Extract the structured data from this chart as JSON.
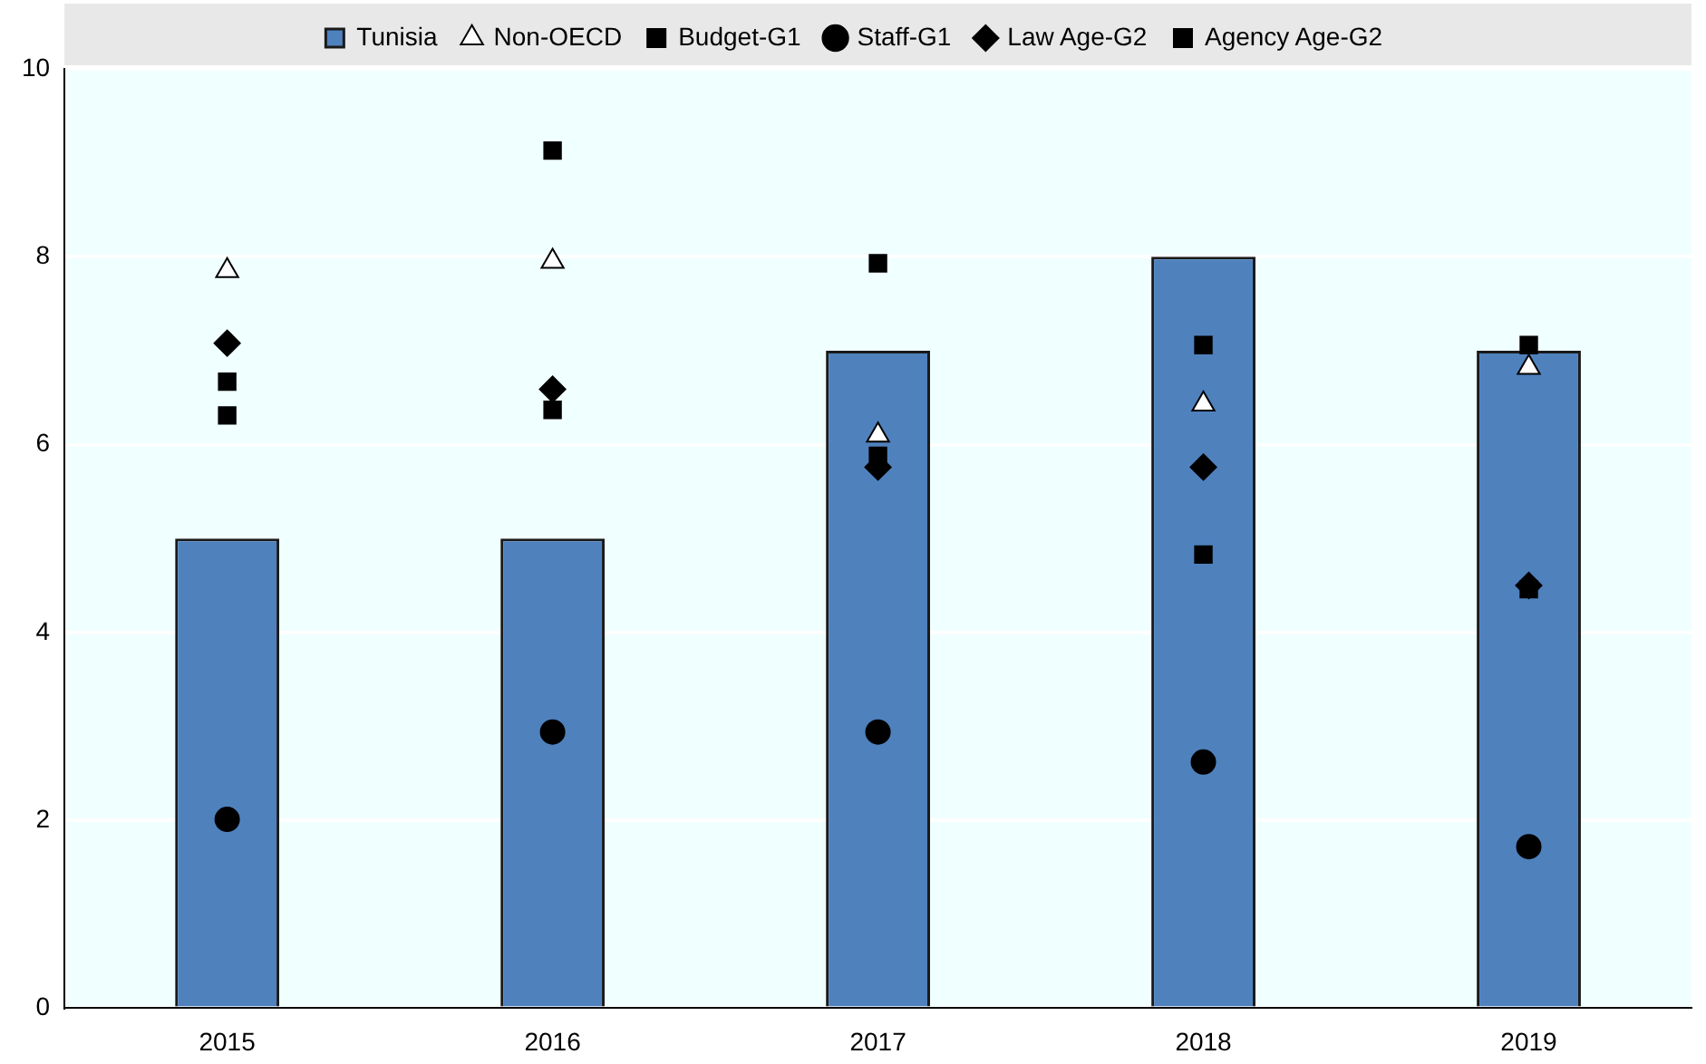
{
  "chart_data": {
    "type": "bar",
    "categories": [
      "2015",
      "2016",
      "2017",
      "2018",
      "2019"
    ],
    "series": [
      {
        "name": "Tunisia",
        "color": "#4f81bd",
        "values": [
          5,
          5,
          7,
          8,
          7
        ]
      },
      {
        "name": "Non-OECD",
        "type": "scatter",
        "marker": "triangle",
        "color": "#ffffff",
        "values": [
          7.85,
          7.95,
          6.1,
          6.43,
          6.82
        ]
      },
      {
        "name": "Budget-G1",
        "type": "scatter",
        "marker": "square",
        "color": "#000000",
        "values": [
          6.31,
          9.13,
          7.93,
          7.06,
          7.06
        ]
      },
      {
        "name": "Staff-G1",
        "type": "scatter",
        "marker": "circle",
        "color": "#000000",
        "values": [
          2.01,
          2.94,
          2.94,
          2.62,
          1.72
        ]
      },
      {
        "name": "Law Age-G2",
        "type": "scatter",
        "marker": "diamond",
        "color": "#000000",
        "values": [
          7.08,
          6.59,
          5.76,
          5.76,
          4.5
        ]
      },
      {
        "name": "Agency Age-G2",
        "type": "scatter",
        "marker": "square",
        "color": "#000000",
        "values": [
          6.67,
          6.37,
          5.88,
          4.83,
          4.46
        ]
      }
    ],
    "ylim": [
      0,
      10
    ],
    "yticks": [
      0,
      2,
      4,
      6,
      8,
      10
    ],
    "grid": "y",
    "legend": "top"
  }
}
